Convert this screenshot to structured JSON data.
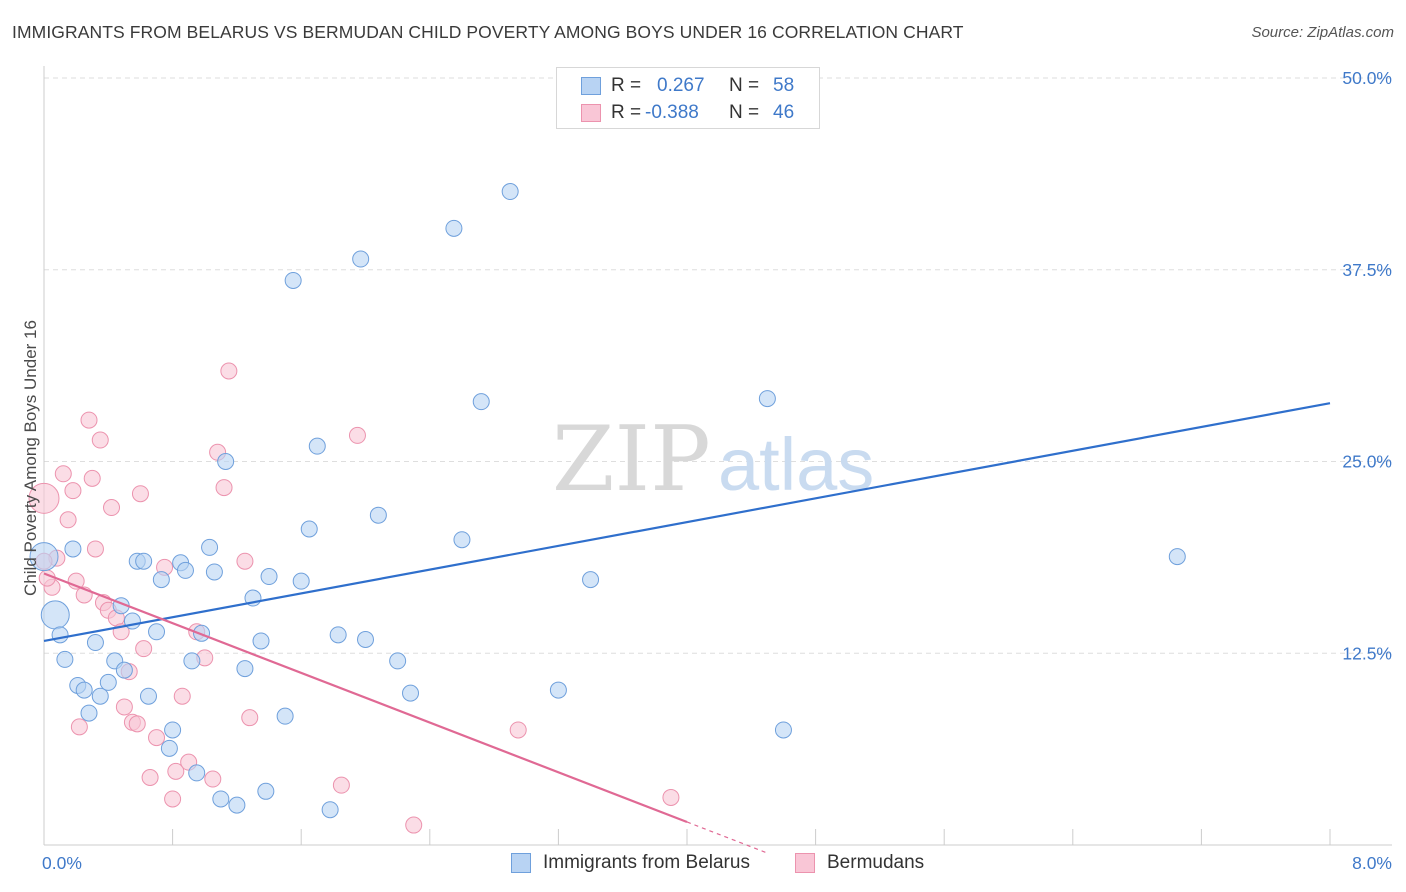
{
  "header": {
    "title": "IMMIGRANTS FROM BELARUS VS BERMUDAN CHILD POVERTY AMONG BOYS UNDER 16 CORRELATION CHART",
    "source": "Source: ZipAtlas.com"
  },
  "watermark": {
    "part1": "ZIP",
    "part2": "atlas"
  },
  "legend": {
    "rows": [
      {
        "r_label": "R =",
        "r_value": "0.267",
        "n_label": "N =",
        "n_value": "58"
      },
      {
        "r_label": "R =",
        "r_value": "-0.388",
        "n_label": "N =",
        "n_value": "46"
      }
    ]
  },
  "bottom_legend": {
    "series1": "Immigrants from Belarus",
    "series2": "Bermudans"
  },
  "chart_data": {
    "type": "scatter",
    "ylabel": "Child Poverty Among Boys Under 16",
    "xlabel": "",
    "xlim": [
      0,
      8
    ],
    "ylim": [
      0,
      50
    ],
    "x_tick_labels": [
      "0.0%",
      "8.0%"
    ],
    "y_tick_labels": [
      "12.5%",
      "25.0%",
      "37.5%",
      "50.0%"
    ],
    "y_ticks": [
      12.5,
      25,
      37.5,
      50
    ],
    "grid": "horizontal dashed",
    "legend_position": "top-center",
    "colors": {
      "series1_fill": "#b8d3f3",
      "series1_stroke": "#6fa0dc",
      "series1_line": "#2f6fcc",
      "series2_fill": "#f9c6d6",
      "series2_stroke": "#ec93ae",
      "series2_line": "#e06994"
    },
    "series": [
      {
        "name": "Immigrants from Belarus",
        "r": 0.267,
        "n": 58,
        "trend": {
          "x": [
            0,
            8
          ],
          "y": [
            13.3,
            28.8
          ]
        },
        "points": [
          [
            0.0,
            18.8
          ],
          [
            0.07,
            15.0
          ],
          [
            0.1,
            13.7
          ],
          [
            0.13,
            12.1
          ],
          [
            0.18,
            19.3
          ],
          [
            0.21,
            10.4
          ],
          [
            0.25,
            10.1
          ],
          [
            0.28,
            8.6
          ],
          [
            0.32,
            13.2
          ],
          [
            0.35,
            9.7
          ],
          [
            0.4,
            10.6
          ],
          [
            0.44,
            12.0
          ],
          [
            0.48,
            15.6
          ],
          [
            0.5,
            11.4
          ],
          [
            0.55,
            14.6
          ],
          [
            0.58,
            18.5
          ],
          [
            0.62,
            18.5
          ],
          [
            0.65,
            9.7
          ],
          [
            0.7,
            13.9
          ],
          [
            0.73,
            17.3
          ],
          [
            0.78,
            6.3
          ],
          [
            0.8,
            7.5
          ],
          [
            0.85,
            18.4
          ],
          [
            0.88,
            17.9
          ],
          [
            0.92,
            12.0
          ],
          [
            0.95,
            4.7
          ],
          [
            0.98,
            13.8
          ],
          [
            1.03,
            19.4
          ],
          [
            1.06,
            17.8
          ],
          [
            1.1,
            3.0
          ],
          [
            1.13,
            25.0
          ],
          [
            1.2,
            2.6
          ],
          [
            1.25,
            11.5
          ],
          [
            1.3,
            16.1
          ],
          [
            1.35,
            13.3
          ],
          [
            1.38,
            3.5
          ],
          [
            1.4,
            17.5
          ],
          [
            1.5,
            8.4
          ],
          [
            1.55,
            36.8
          ],
          [
            1.6,
            17.2
          ],
          [
            1.65,
            20.6
          ],
          [
            1.7,
            26.0
          ],
          [
            1.78,
            2.3
          ],
          [
            1.83,
            13.7
          ],
          [
            1.97,
            38.2
          ],
          [
            2.0,
            13.4
          ],
          [
            2.08,
            21.5
          ],
          [
            2.2,
            12.0
          ],
          [
            2.28,
            9.9
          ],
          [
            2.55,
            40.2
          ],
          [
            2.6,
            19.9
          ],
          [
            2.72,
            28.9
          ],
          [
            2.9,
            42.6
          ],
          [
            3.2,
            10.1
          ],
          [
            3.4,
            17.3
          ],
          [
            4.5,
            29.1
          ],
          [
            4.6,
            7.5
          ],
          [
            7.05,
            18.8
          ]
        ]
      },
      {
        "name": "Bermudans",
        "r": -0.388,
        "n": 46,
        "trend": {
          "x": [
            0,
            4.0
          ],
          "y": [
            17.7,
            1.5
          ],
          "dashed_extension_x": [
            4.0,
            4.5
          ]
        },
        "points": [
          [
            0.0,
            22.6
          ],
          [
            0.05,
            16.8
          ],
          [
            0.08,
            18.7
          ],
          [
            0.12,
            24.2
          ],
          [
            0.15,
            21.2
          ],
          [
            0.18,
            23.1
          ],
          [
            0.2,
            17.2
          ],
          [
            0.22,
            7.7
          ],
          [
            0.25,
            16.3
          ],
          [
            0.28,
            27.7
          ],
          [
            0.3,
            23.9
          ],
          [
            0.32,
            19.3
          ],
          [
            0.35,
            26.4
          ],
          [
            0.37,
            15.8
          ],
          [
            0.4,
            15.3
          ],
          [
            0.42,
            22.0
          ],
          [
            0.45,
            14.8
          ],
          [
            0.48,
            13.9
          ],
          [
            0.5,
            9.0
          ],
          [
            0.53,
            11.3
          ],
          [
            0.55,
            8.0
          ],
          [
            0.58,
            7.9
          ],
          [
            0.6,
            22.9
          ],
          [
            0.62,
            12.8
          ],
          [
            0.66,
            4.4
          ],
          [
            0.7,
            7.0
          ],
          [
            0.75,
            18.1
          ],
          [
            0.8,
            3.0
          ],
          [
            0.82,
            4.8
          ],
          [
            0.86,
            9.7
          ],
          [
            0.9,
            5.4
          ],
          [
            0.95,
            13.9
          ],
          [
            1.0,
            12.2
          ],
          [
            1.05,
            4.3
          ],
          [
            1.08,
            25.6
          ],
          [
            1.12,
            23.3
          ],
          [
            1.15,
            30.9
          ],
          [
            1.25,
            18.5
          ],
          [
            1.28,
            8.3
          ],
          [
            1.85,
            3.9
          ],
          [
            1.95,
            26.7
          ],
          [
            2.3,
            1.3
          ],
          [
            2.95,
            7.5
          ],
          [
            3.9,
            3.1
          ],
          [
            0.0,
            18.5
          ],
          [
            0.02,
            17.4
          ]
        ]
      }
    ]
  }
}
